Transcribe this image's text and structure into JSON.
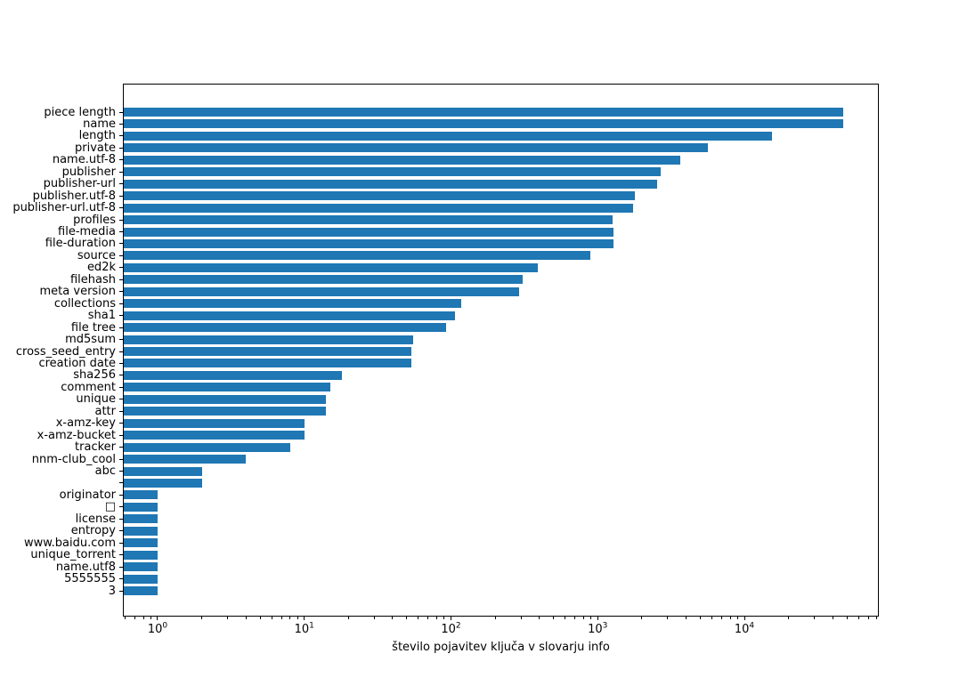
{
  "chart_data": {
    "type": "bar",
    "orientation": "horizontal",
    "xscale": "log",
    "title": "",
    "xlabel": "število pojavitev ključa v slovarju info",
    "ylabel": "",
    "xlim": [
      0.58,
      82500
    ],
    "x_major_tick_exponents": [
      0,
      1,
      2,
      3,
      4
    ],
    "grid": false,
    "legend": "none",
    "bar_color": "#1f77b4",
    "axis_color": "#000000",
    "categories": [
      "piece length",
      "name",
      "length",
      "private",
      "name.utf-8",
      "publisher",
      "publisher-url",
      "publisher.utf-8",
      "publisher-url.utf-8",
      "profiles",
      "file-media",
      "file-duration",
      "source",
      "ed2k",
      "filehash",
      "meta version",
      "collections",
      "sha1",
      "file tree",
      "md5sum",
      "cross_seed_entry",
      "creation date",
      "sha256",
      "comment",
      "unique",
      "attr",
      "x-amz-key",
      "x-amz-bucket",
      "tracker",
      "nnm-club_cool",
      "abc",
      "",
      "originator",
      "□",
      "license",
      "entropy",
      "www.baidu.com",
      "unique_torrent",
      "name.utf8",
      "5555555",
      "3"
    ],
    "values": [
      47000,
      47000,
      15500,
      5600,
      3650,
      2700,
      2540,
      1790,
      1740,
      1270,
      1275,
      1275,
      890,
      390,
      310,
      290,
      117,
      107,
      93,
      55,
      54,
      54,
      18,
      15,
      14,
      14,
      10,
      10,
      8,
      4,
      2,
      2,
      1,
      1,
      1,
      1,
      1,
      1,
      1,
      1,
      1
    ]
  }
}
